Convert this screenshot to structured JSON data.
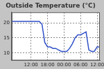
{
  "chart_data": {
    "type": "line",
    "title": "Outside Temperature (°C)",
    "categories": [
      null,
      null,
      null,
      null,
      null,
      null,
      null,
      "12:00",
      null,
      null,
      null,
      null,
      null,
      "18:00",
      null,
      null,
      null,
      null,
      null,
      "00:00",
      null,
      null,
      null,
      null,
      null,
      "06:00",
      null,
      null,
      null,
      null,
      null,
      "12:00",
      null
    ],
    "values": [
      20.5,
      20.5,
      20.5,
      20.5,
      20.5,
      20.5,
      20.5,
      20.5,
      20.5,
      20.5,
      20.5,
      19.5,
      13.5,
      12,
      12,
      11.5,
      11.5,
      11,
      10.5,
      10.5,
      10.5,
      11.5,
      13,
      15,
      16,
      16,
      16.5,
      17,
      11,
      10.5,
      10.5,
      12,
      12
    ],
    "color": "#3050c8",
    "ylim": [
      7.5,
      23.5
    ],
    "yticks": [
      10,
      15,
      20
    ],
    "grid": true
  }
}
